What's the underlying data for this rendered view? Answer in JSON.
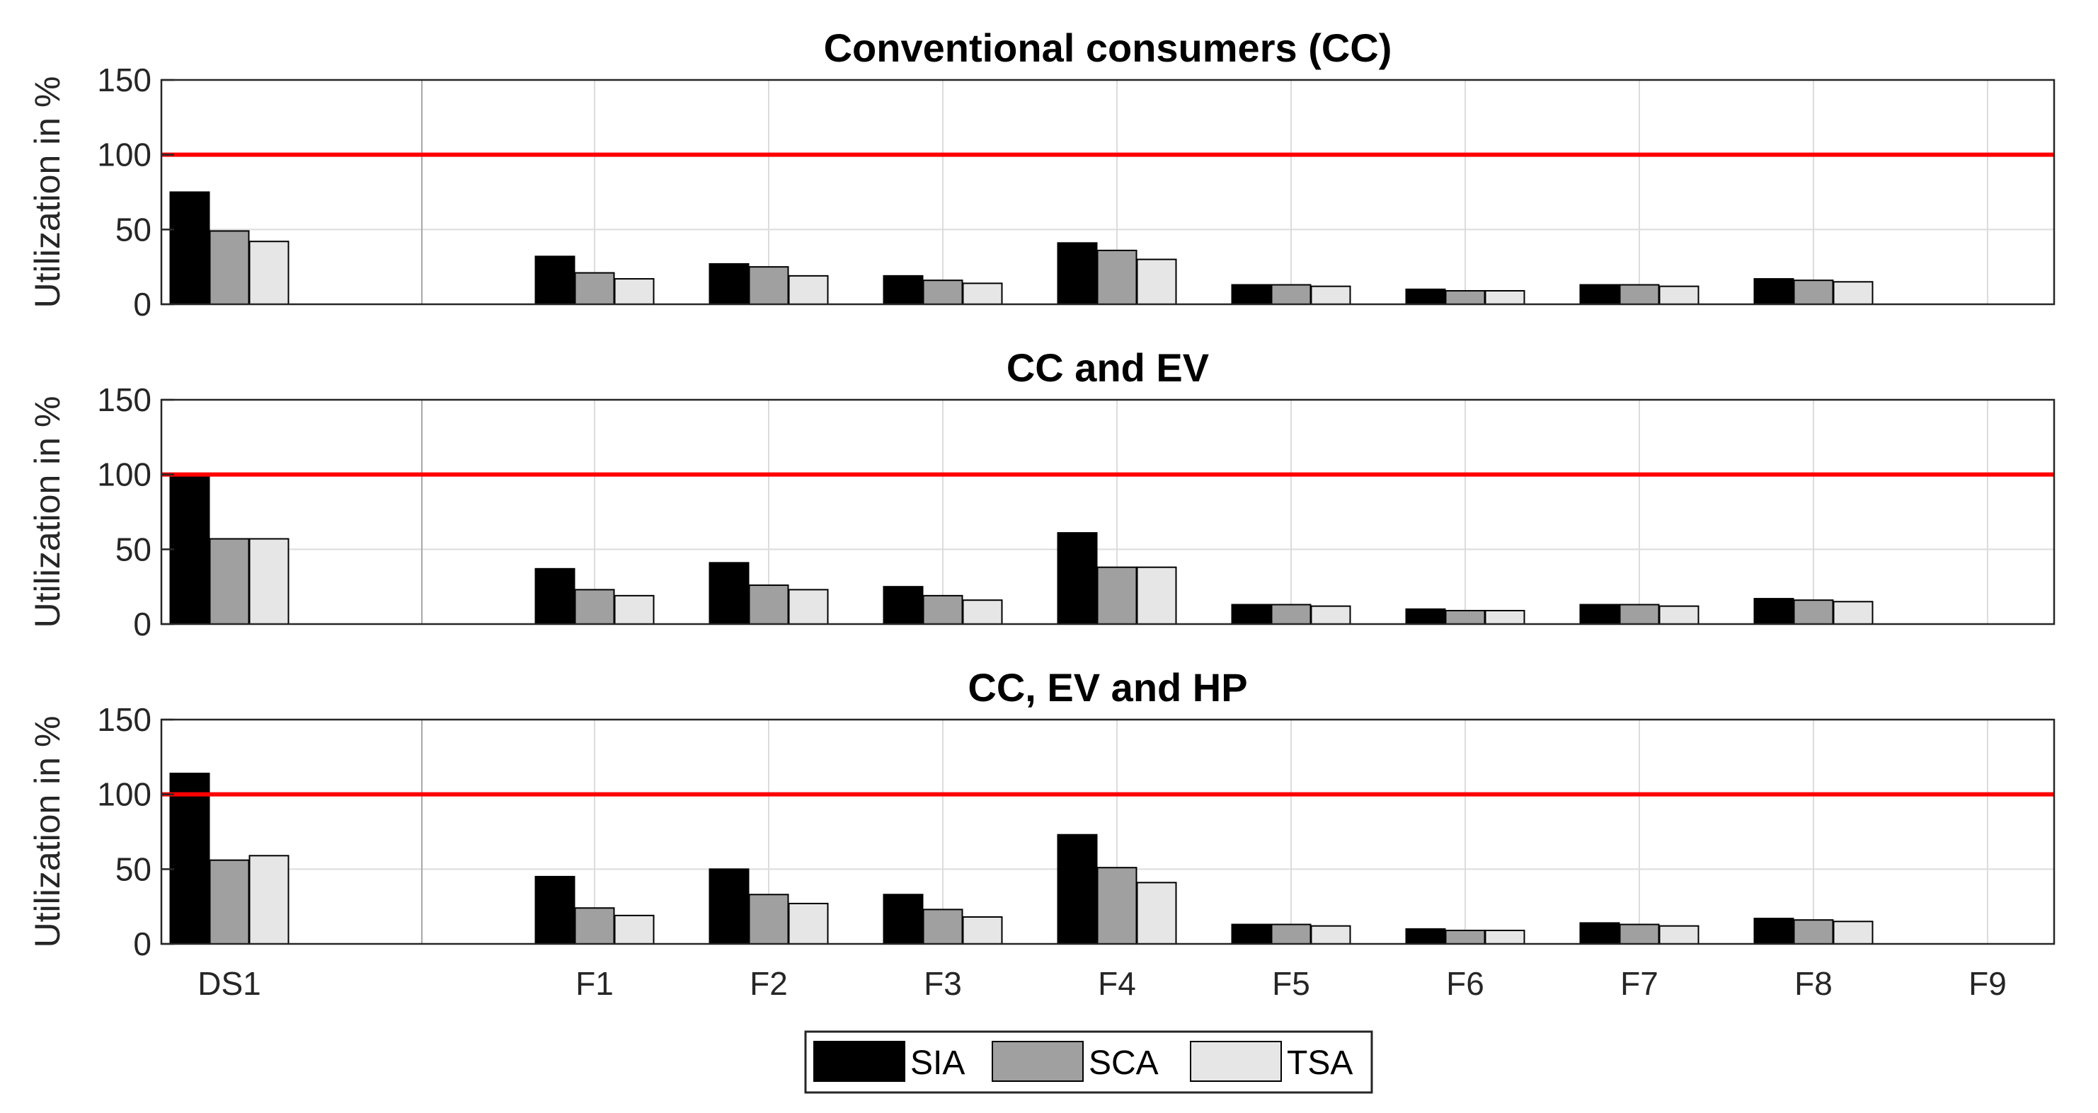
{
  "legend": [
    {
      "label": "SIA",
      "color": "#000000"
    },
    {
      "label": "SCA",
      "color": "#a0a0a0"
    },
    {
      "label": "TSA",
      "color": "#e6e6e6"
    }
  ],
  "reference_line": {
    "value": 100,
    "color": "#ff0000"
  },
  "chart_data": [
    {
      "type": "bar",
      "title": "Conventional consumers (CC)",
      "ylabel": "Utilization in %",
      "xlabel": "",
      "ylim": [
        0,
        150
      ],
      "yticks": [
        0,
        50,
        100,
        150
      ],
      "grid": true,
      "categories": [
        "DS1",
        "",
        "F1",
        "F2",
        "F3",
        "F4",
        "F5",
        "F6",
        "F7",
        "F8",
        "F9"
      ],
      "series": [
        {
          "name": "SIA",
          "values": [
            75,
            null,
            32,
            27,
            19,
            41,
            13,
            10,
            13,
            17,
            0
          ]
        },
        {
          "name": "SCA",
          "values": [
            49,
            null,
            21,
            25,
            16,
            36,
            13,
            9,
            13,
            16,
            0
          ]
        },
        {
          "name": "TSA",
          "values": [
            42,
            null,
            17,
            19,
            14,
            30,
            12,
            9,
            12,
            15,
            0
          ]
        }
      ]
    },
    {
      "type": "bar",
      "title": "CC and EV",
      "ylabel": "Utilization in %",
      "xlabel": "",
      "ylim": [
        0,
        150
      ],
      "yticks": [
        0,
        50,
        100,
        150
      ],
      "grid": true,
      "categories": [
        "DS1",
        "",
        "F1",
        "F2",
        "F3",
        "F4",
        "F5",
        "F6",
        "F7",
        "F8",
        "F9"
      ],
      "series": [
        {
          "name": "SIA",
          "values": [
            100,
            null,
            37,
            41,
            25,
            61,
            13,
            10,
            13,
            17,
            0
          ]
        },
        {
          "name": "SCA",
          "values": [
            57,
            null,
            23,
            26,
            19,
            38,
            13,
            9,
            13,
            16,
            0
          ]
        },
        {
          "name": "TSA",
          "values": [
            57,
            null,
            19,
            23,
            16,
            38,
            12,
            9,
            12,
            15,
            0
          ]
        }
      ]
    },
    {
      "type": "bar",
      "title": "CC, EV and HP",
      "ylabel": "Utilization in %",
      "xlabel": "",
      "ylim": [
        0,
        150
      ],
      "yticks": [
        0,
        50,
        100,
        150
      ],
      "grid": true,
      "categories": [
        "DS1",
        "",
        "F1",
        "F2",
        "F3",
        "F4",
        "F5",
        "F6",
        "F7",
        "F8",
        "F9"
      ],
      "series": [
        {
          "name": "SIA",
          "values": [
            114,
            null,
            45,
            50,
            33,
            73,
            13,
            10,
            14,
            17,
            0
          ]
        },
        {
          "name": "SCA",
          "values": [
            56,
            null,
            24,
            33,
            23,
            51,
            13,
            9,
            13,
            16,
            0
          ]
        },
        {
          "name": "TSA",
          "values": [
            59,
            null,
            19,
            27,
            18,
            41,
            12,
            9,
            12,
            15,
            0
          ]
        }
      ]
    }
  ]
}
